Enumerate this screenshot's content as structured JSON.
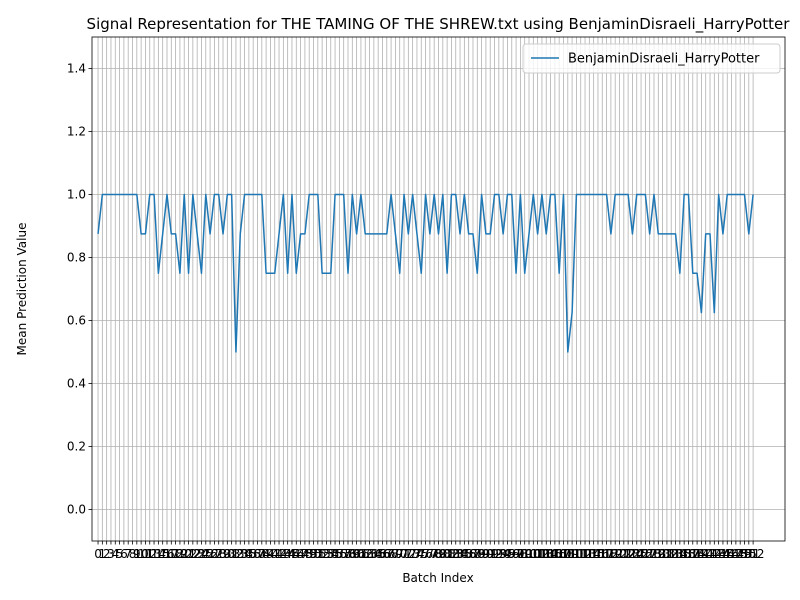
{
  "chart_data": {
    "type": "line",
    "title": "Signal Representation for THE TAMING OF THE SHREW.txt using BenjaminDisraeli_HarryPotter",
    "xlabel": "Batch Index",
    "ylabel": "Mean Prediction Value",
    "x": [
      0,
      1,
      2,
      3,
      4,
      5,
      6,
      7,
      8,
      9,
      10,
      11,
      12,
      13,
      14,
      15,
      16,
      17,
      18,
      19,
      20,
      21,
      22,
      23,
      24,
      25,
      26,
      27,
      28,
      29,
      30,
      31,
      32,
      33,
      34,
      35,
      36,
      37,
      38,
      39,
      40,
      41,
      42,
      43,
      44,
      45,
      46,
      47,
      48,
      49,
      50,
      51,
      52,
      53,
      54,
      55,
      56,
      57,
      58,
      59,
      60,
      61,
      62,
      63,
      64,
      65,
      66,
      67,
      68,
      69,
      70,
      71,
      72,
      73,
      74,
      75,
      76,
      77,
      78,
      79,
      80,
      81,
      82,
      83,
      84,
      85,
      86,
      87,
      88,
      89,
      90,
      91,
      92,
      93,
      94,
      95,
      96,
      97,
      98,
      99,
      100,
      101,
      102,
      103,
      104,
      105,
      106,
      107,
      108,
      109,
      110,
      111,
      112,
      113,
      114,
      115,
      116,
      117,
      118,
      119,
      120,
      121,
      122,
      123,
      124,
      125,
      126,
      127,
      128,
      129,
      130,
      131,
      132,
      133,
      134,
      135,
      136,
      137,
      138,
      139,
      140,
      141,
      142,
      143,
      144,
      145,
      146,
      147,
      148,
      149,
      150,
      151,
      152
    ],
    "series": [
      {
        "name": "BenjaminDisraeli_HarryPotter",
        "color": "#1f77b4",
        "values": [
          0.875,
          1,
          1,
          1,
          1,
          1,
          1,
          1,
          1,
          1,
          0.875,
          0.875,
          1,
          1,
          0.75,
          0.875,
          1,
          0.875,
          0.875,
          0.75,
          1,
          0.75,
          1,
          0.875,
          0.75,
          1,
          0.875,
          1,
          1,
          0.875,
          1,
          1,
          0.5,
          0.875,
          1,
          1,
          1,
          1,
          1,
          0.75,
          0.75,
          0.75,
          0.875,
          1,
          0.75,
          1,
          0.75,
          0.875,
          0.875,
          1,
          1,
          1,
          0.75,
          0.75,
          0.75,
          1,
          1,
          1,
          0.75,
          1,
          0.875,
          1,
          0.875,
          0.875,
          0.875,
          0.875,
          0.875,
          0.875,
          1,
          0.875,
          0.75,
          1,
          0.875,
          1,
          0.875,
          0.75,
          1,
          0.875,
          1,
          0.875,
          1,
          0.75,
          1,
          1,
          0.875,
          1,
          0.875,
          0.875,
          0.75,
          1,
          0.875,
          0.875,
          1,
          1,
          0.875,
          1,
          1,
          0.75,
          1,
          0.75,
          0.875,
          1,
          0.875,
          1,
          0.875,
          1,
          1,
          0.75,
          1,
          0.5,
          0.625,
          1,
          1,
          1,
          1,
          1,
          1,
          1,
          1,
          0.875,
          1,
          1,
          1,
          1,
          0.875,
          1,
          1,
          1,
          0.875,
          1,
          0.875,
          0.875,
          0.875,
          0.875,
          0.875,
          0.75,
          1,
          1,
          0.75,
          0.75,
          0.625,
          0.875,
          0.875,
          0.625,
          1,
          0.875,
          1,
          1,
          1,
          1,
          1,
          0.875,
          1
        ]
      }
    ],
    "xlim": [
      -1.4,
      159.4
    ],
    "xticks": [
      0,
      1,
      2,
      3,
      4,
      5,
      6,
      7,
      8,
      9,
      10,
      11,
      12,
      13,
      14,
      15,
      16,
      17,
      18,
      19,
      20,
      21,
      22,
      23,
      24,
      25,
      26,
      27,
      28,
      29,
      30,
      31,
      32,
      33,
      34,
      35,
      36,
      37,
      38,
      39,
      40,
      41,
      42,
      43,
      44,
      45,
      46,
      47,
      48,
      49,
      50,
      51,
      52,
      53,
      54,
      55,
      56,
      57,
      58,
      59,
      60,
      61,
      62,
      63,
      64,
      65,
      66,
      67,
      68,
      69,
      70,
      71,
      72,
      73,
      74,
      75,
      76,
      77,
      78,
      79,
      80,
      81,
      82,
      83,
      84,
      85,
      86,
      87,
      88,
      89,
      90,
      91,
      92,
      93,
      94,
      95,
      96,
      97,
      98,
      99,
      100,
      101,
      102,
      103,
      104,
      105,
      106,
      107,
      108,
      109,
      110,
      111,
      112,
      113,
      114,
      115,
      116,
      117,
      118,
      119,
      120,
      121,
      122,
      123,
      124,
      125,
      126,
      127,
      128,
      129,
      130,
      131,
      132,
      133,
      134,
      135,
      136,
      137,
      138,
      139,
      140,
      141,
      142,
      143,
      144,
      145,
      146,
      147,
      148,
      149,
      150,
      151,
      152
    ],
    "ylim": [
      -0.1,
      1.5
    ],
    "yticks": [
      {
        "value": 0,
        "label": "0.0"
      },
      0.2,
      0.4,
      0.6,
      0.8,
      {
        "value": 1,
        "label": "1.0"
      },
      1.2,
      1.4
    ],
    "grid": true,
    "legend": "upper right"
  }
}
